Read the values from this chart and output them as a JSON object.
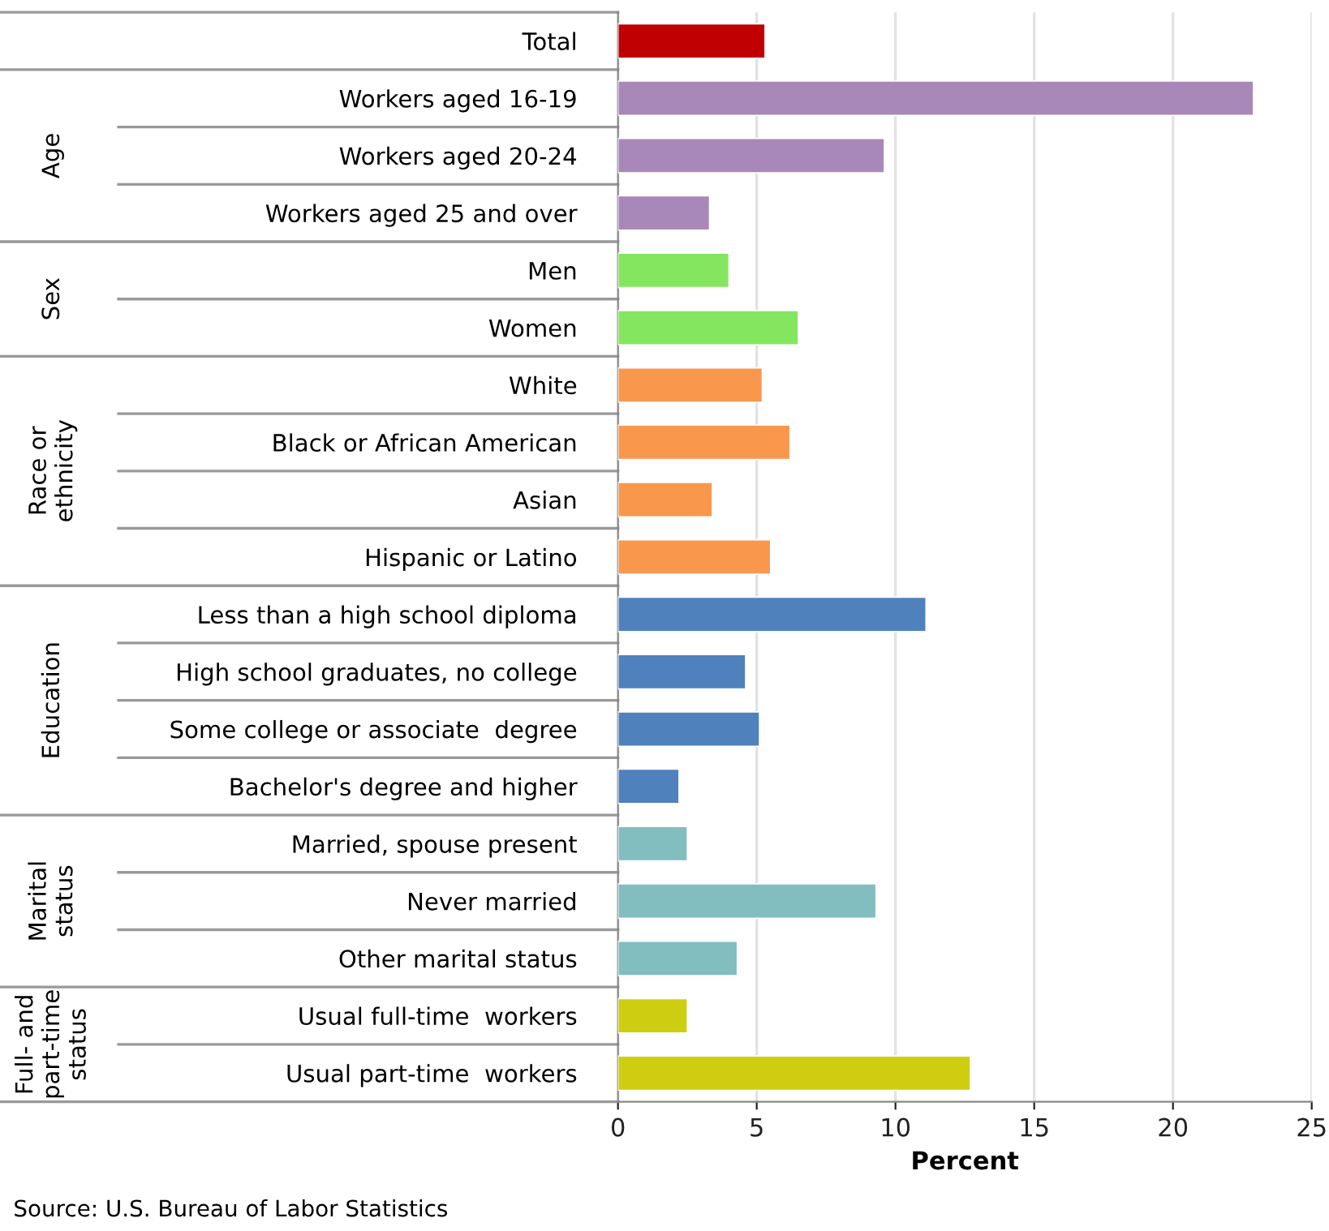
{
  "chart_data": {
    "type": "bar",
    "orientation": "horizontal",
    "categories": [
      "Total",
      "Workers aged 16-19",
      "Workers aged 20-24",
      "Workers aged 25 and over",
      "Men",
      "Women",
      "White",
      "Black or African American",
      "Asian",
      "Hispanic or Latino",
      "Less than a high school diploma",
      "High school graduates, no college",
      "Some college or associate  degree",
      "Bachelor's degree and higher",
      "Married, spouse present",
      "Never married",
      "Other marital status",
      "Usual full-time  workers",
      "Usual part-time  workers"
    ],
    "values": [
      5.3,
      22.9,
      9.6,
      3.3,
      4.0,
      6.5,
      5.2,
      6.2,
      3.4,
      5.5,
      11.1,
      4.6,
      5.1,
      2.2,
      2.5,
      9.3,
      4.3,
      2.5,
      12.7
    ],
    "colors": [
      "#c00000",
      "#a788b9",
      "#a788b9",
      "#a788b9",
      "#84e65e",
      "#84e65e",
      "#f9974c",
      "#f9974c",
      "#f9974c",
      "#f9974c",
      "#4f81bd",
      "#4f81bd",
      "#4f81bd",
      "#4f81bd",
      "#82bdbf",
      "#82bdbf",
      "#82bdbf",
      "#cfcd0f",
      "#cfcd0f"
    ],
    "xlabel": "Percent",
    "xlim": [
      0,
      25
    ],
    "xticks": [
      0,
      5,
      10,
      15,
      20,
      25
    ],
    "grid": "x",
    "annotations": [
      "Age",
      "Sex",
      "Race or\nethnicity",
      "Education",
      "Marital\nstatus",
      "Full- and\npart-time\nstatus",
      "Source: U.S. Bureau of Labor Statistics"
    ]
  }
}
